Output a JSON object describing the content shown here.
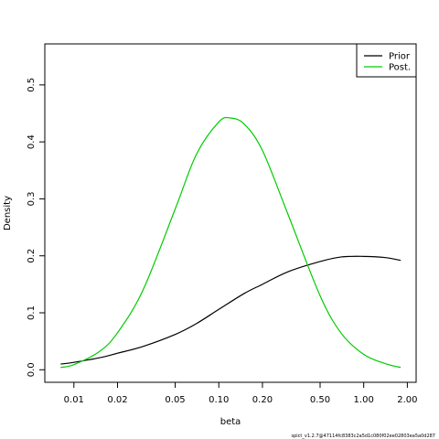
{
  "chart_data": {
    "type": "line",
    "xlabel": "beta",
    "ylabel": "Density",
    "x_scale": "log",
    "xlim": [
      0.0063,
      2.3
    ],
    "ylim": [
      -0.022,
      0.572
    ],
    "x_ticks": [
      0.01,
      0.02,
      0.05,
      0.1,
      0.2,
      0.5,
      1.0,
      2.0
    ],
    "x_tick_labels": [
      "0.01",
      "0.02",
      "0.05",
      "0.10",
      "0.20",
      "0.50",
      "1.00",
      "2.00"
    ],
    "y_ticks": [
      0.0,
      0.1,
      0.2,
      0.3,
      0.4,
      0.5
    ],
    "y_tick_labels": [
      "0.0",
      "0.1",
      "0.2",
      "0.3",
      "0.4",
      "0.5"
    ],
    "grid": false,
    "legend_position": "top-right",
    "series": [
      {
        "name": "Prior",
        "color": "#000000",
        "x": [
          0.0081,
          0.01,
          0.015,
          0.02,
          0.03,
          0.05,
          0.07,
          0.1,
          0.15,
          0.2,
          0.3,
          0.5,
          0.7,
          1.0,
          1.4,
          1.8
        ],
        "y": [
          0.01,
          0.013,
          0.021,
          0.029,
          0.041,
          0.062,
          0.081,
          0.106,
          0.134,
          0.15,
          0.172,
          0.19,
          0.198,
          0.199,
          0.197,
          0.192
        ]
      },
      {
        "name": "Post.",
        "color": "#00cc00",
        "x": [
          0.0081,
          0.01,
          0.015,
          0.02,
          0.03,
          0.05,
          0.07,
          0.1,
          0.12,
          0.15,
          0.2,
          0.3,
          0.5,
          0.7,
          1.0,
          1.4,
          1.8
        ],
        "y": [
          0.004,
          0.009,
          0.032,
          0.065,
          0.14,
          0.282,
          0.378,
          0.435,
          0.442,
          0.431,
          0.385,
          0.273,
          0.13,
          0.064,
          0.027,
          0.011,
          0.004
        ]
      }
    ]
  },
  "footer": "spict_v1.2.7@47114fc8383c2a5d1c080f02ee02803ea5a0d287"
}
